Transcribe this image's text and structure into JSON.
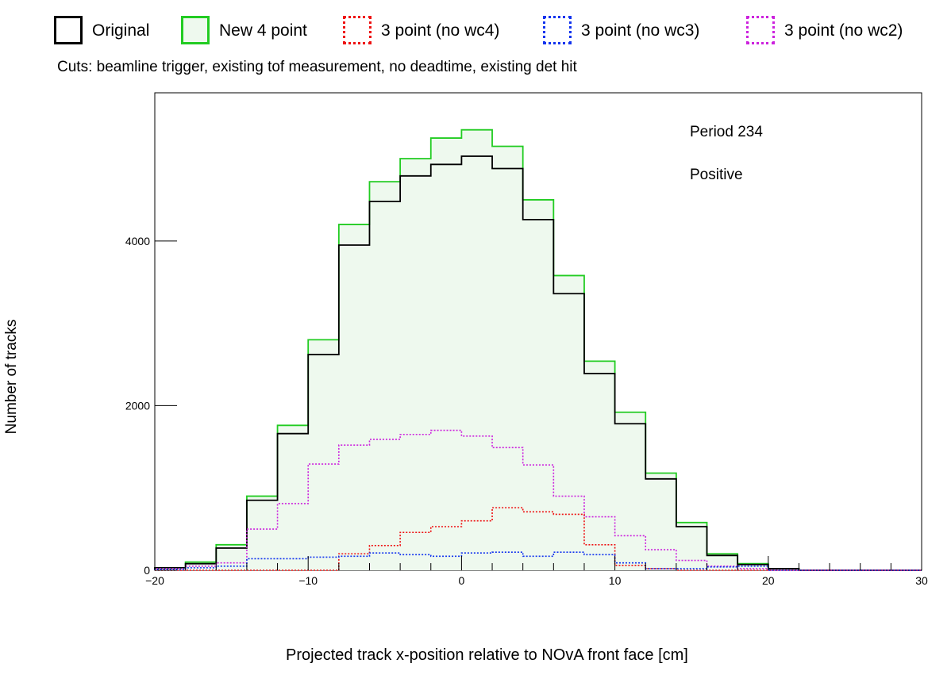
{
  "legend": [
    {
      "label": "Original",
      "color": "#000000",
      "style": "solid",
      "fill": "none"
    },
    {
      "label": "New 4 point",
      "color": "#22cc22",
      "style": "solid",
      "fill": "#eef9ee"
    },
    {
      "label": "3 point (no wc4)",
      "color": "#ee1111",
      "style": "dotted",
      "fill": "none"
    },
    {
      "label": "3 point (no wc3)",
      "color": "#1133ee",
      "style": "dotted",
      "fill": "none"
    },
    {
      "label": "3 point (no wc2)",
      "color": "#cc22dd",
      "style": "dotted",
      "fill": "none"
    }
  ],
  "cuts_text": "Cuts: beamline trigger, existing tof measurement, no deadtime, existing det hit",
  "chart_data": {
    "type": "histogram",
    "xlabel": "Projected track x-position relative to NOvA front face [cm]",
    "ylabel": "Number of tracks",
    "xlim": [
      -20,
      30
    ],
    "ylim": [
      0,
      5800
    ],
    "xticks": [
      "−20",
      "−10",
      "0",
      "10",
      "20",
      "30"
    ],
    "yticks": [
      "0",
      "2000",
      "4000"
    ],
    "annotations": [
      "Period 234",
      "Positive"
    ],
    "bin_edges": [
      -20,
      -18,
      -16,
      -14,
      -12,
      -10,
      -8,
      -6,
      -4,
      -2,
      0,
      2,
      4,
      6,
      8,
      10,
      12,
      14,
      16,
      18,
      20,
      22,
      24,
      26,
      28,
      30
    ],
    "series": [
      {
        "name": "New 4 point",
        "color": "#22cc22",
        "style": "solid",
        "fill": "#eef9ee",
        "values": [
          30,
          100,
          310,
          900,
          1760,
          2800,
          4200,
          4720,
          5000,
          5250,
          5350,
          5150,
          4500,
          3580,
          2540,
          1920,
          1180,
          580,
          200,
          80,
          20,
          0,
          0,
          0,
          0
        ]
      },
      {
        "name": "Original",
        "color": "#000000",
        "style": "solid",
        "fill": "none",
        "values": [
          30,
          80,
          270,
          850,
          1660,
          2620,
          3950,
          4480,
          4790,
          4930,
          5030,
          4880,
          4260,
          3360,
          2390,
          1780,
          1110,
          530,
          180,
          70,
          20,
          0,
          0,
          0,
          0
        ]
      },
      {
        "name": "3 point (no wc2)",
        "color": "#cc22dd",
        "style": "dotted",
        "fill": "none",
        "values": [
          20,
          50,
          90,
          500,
          810,
          1290,
          1520,
          1590,
          1650,
          1700,
          1630,
          1490,
          1280,
          900,
          650,
          420,
          250,
          120,
          50,
          20,
          0,
          0,
          0,
          0,
          0
        ]
      },
      {
        "name": "3 point (no wc4)",
        "color": "#ee1111",
        "style": "dotted",
        "fill": "none",
        "values": [
          0,
          0,
          0,
          0,
          0,
          0,
          200,
          300,
          460,
          530,
          600,
          760,
          710,
          680,
          310,
          60,
          20,
          0,
          0,
          0,
          0,
          0,
          0,
          0,
          0
        ]
      },
      {
        "name": "3 point (no wc3)",
        "color": "#1133ee",
        "style": "dotted",
        "fill": "none",
        "values": [
          10,
          30,
          50,
          140,
          140,
          160,
          170,
          210,
          190,
          170,
          210,
          220,
          170,
          220,
          190,
          90,
          20,
          20,
          40,
          50,
          0,
          0,
          0,
          0,
          0
        ]
      }
    ]
  }
}
